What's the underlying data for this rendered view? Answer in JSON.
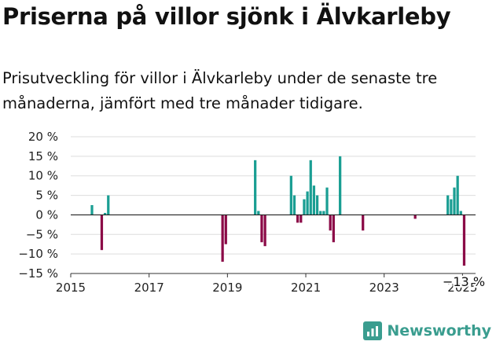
{
  "title": "Priserna på villor sjönk i Älvkarleby",
  "subtitle": "Prisutveckling för villor i Älvkarleby under de senaste tre månaderna, jämfört med tre månader tidigare.",
  "logo": {
    "text": "Newsworthy",
    "icon": "newsworthy-logo-icon"
  },
  "colors": {
    "positive": "#1a9e93",
    "negative": "#8b0a47",
    "zero_line": "#222222",
    "grid": "#dddddd"
  },
  "chart_data": {
    "type": "bar",
    "title": "",
    "xlabel": "",
    "ylabel": "",
    "ylim": [
      -15,
      20
    ],
    "xlim": [
      "2015-01",
      "2025-05"
    ],
    "y_ticks": [
      {
        "value": 20,
        "label": "20 %"
      },
      {
        "value": 15,
        "label": "15 %"
      },
      {
        "value": 10,
        "label": "10 %"
      },
      {
        "value": 5,
        "label": "5 %"
      },
      {
        "value": 0,
        "label": "0 %"
      },
      {
        "value": -5,
        "label": "−5 %"
      },
      {
        "value": -10,
        "label": "−10 %"
      },
      {
        "value": -15,
        "label": "−15 %"
      }
    ],
    "x_ticks": [
      {
        "value": "2015-01",
        "label": "2015"
      },
      {
        "value": "2017-01",
        "label": "2017"
      },
      {
        "value": "2019-01",
        "label": "2019"
      },
      {
        "value": "2021-01",
        "label": "2021"
      },
      {
        "value": "2023-01",
        "label": "2023"
      },
      {
        "value": "2025-01",
        "label": "2025"
      }
    ],
    "grid": true,
    "annotation": {
      "text": "−13 %",
      "x": "2025-01",
      "y": -13
    },
    "points": [
      {
        "x": "2015-07",
        "y": 2.5
      },
      {
        "x": "2015-10",
        "y": -9
      },
      {
        "x": "2015-11",
        "y": 0.5
      },
      {
        "x": "2015-12",
        "y": 5
      },
      {
        "x": "2018-11",
        "y": -12
      },
      {
        "x": "2018-12",
        "y": -7.5
      },
      {
        "x": "2019-09",
        "y": 14
      },
      {
        "x": "2019-10",
        "y": 1
      },
      {
        "x": "2019-11",
        "y": -7
      },
      {
        "x": "2019-12",
        "y": -8
      },
      {
        "x": "2020-08",
        "y": 10
      },
      {
        "x": "2020-09",
        "y": 5
      },
      {
        "x": "2020-10",
        "y": -2
      },
      {
        "x": "2020-11",
        "y": -2
      },
      {
        "x": "2020-12",
        "y": 4
      },
      {
        "x": "2021-01",
        "y": 6
      },
      {
        "x": "2021-02",
        "y": 14
      },
      {
        "x": "2021-03",
        "y": 7.5
      },
      {
        "x": "2021-04",
        "y": 5
      },
      {
        "x": "2021-05",
        "y": 1
      },
      {
        "x": "2021-06",
        "y": 1
      },
      {
        "x": "2021-07",
        "y": 7
      },
      {
        "x": "2021-08",
        "y": -4
      },
      {
        "x": "2021-09",
        "y": -7
      },
      {
        "x": "2021-11",
        "y": 15
      },
      {
        "x": "2022-06",
        "y": -4
      },
      {
        "x": "2023-10",
        "y": -1
      },
      {
        "x": "2024-08",
        "y": 5
      },
      {
        "x": "2024-09",
        "y": 4
      },
      {
        "x": "2024-10",
        "y": 7
      },
      {
        "x": "2024-11",
        "y": 10
      },
      {
        "x": "2024-12",
        "y": 1
      },
      {
        "x": "2025-01",
        "y": -13
      }
    ]
  }
}
